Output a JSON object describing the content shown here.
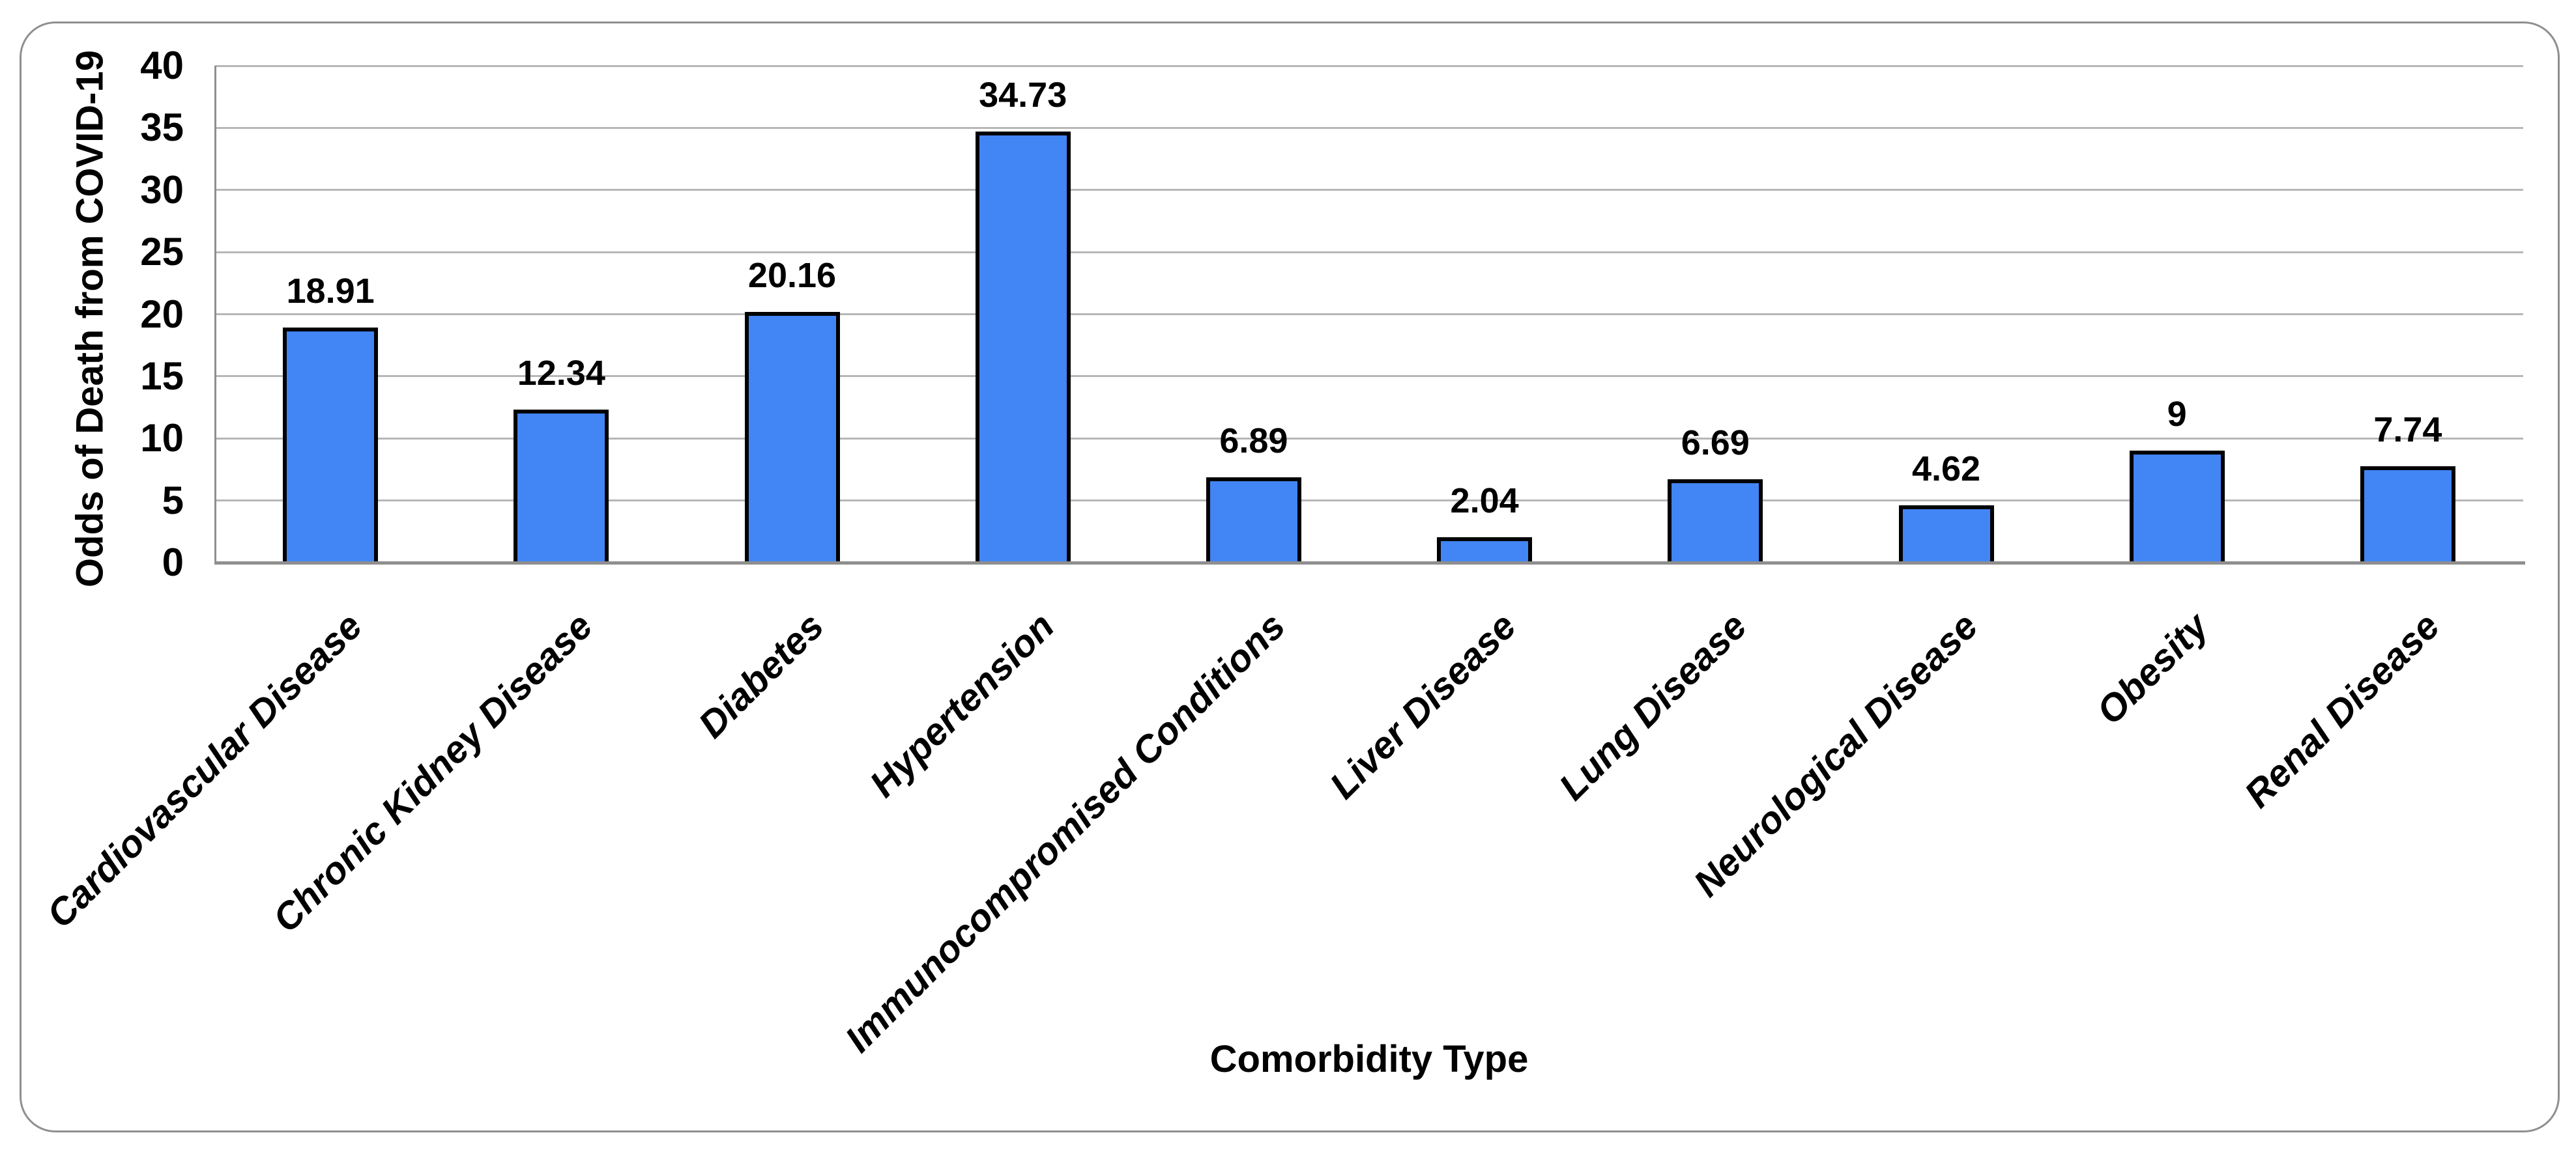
{
  "chart_data": {
    "type": "bar",
    "title": "",
    "xlabel": "Comorbidity Type",
    "ylabel": "Odds of Death from COVID-19",
    "categories": [
      "Cardiovascular Disease",
      "Chronic Kidney Disease",
      "Diabetes",
      "Hypertension",
      "Immunocompromised Conditions",
      "Liver Disease",
      "Lung Disease",
      "Neurological Disease",
      "Obesity",
      "Renal Disease"
    ],
    "values": [
      18.91,
      12.34,
      20.16,
      34.73,
      6.89,
      2.04,
      6.69,
      4.62,
      9,
      7.74
    ],
    "data_labels": [
      "18.91",
      "12.34",
      "20.16",
      "34.73",
      "6.89",
      "2.04",
      "6.69",
      "4.62",
      "9",
      "7.74"
    ],
    "ylim": [
      0,
      40
    ],
    "yticks": [
      0,
      5,
      10,
      15,
      20,
      25,
      30,
      35,
      40
    ],
    "grid": "horizontal",
    "legend_position": "none",
    "colors": {
      "bar_fill": "#4285f4",
      "bar_border": "#000000",
      "gridline": "#b7b7b7",
      "axis_line": "#8f8f8f",
      "frame_border": "#8f8f8f",
      "text": "#000000",
      "background": "#ffffff"
    }
  }
}
